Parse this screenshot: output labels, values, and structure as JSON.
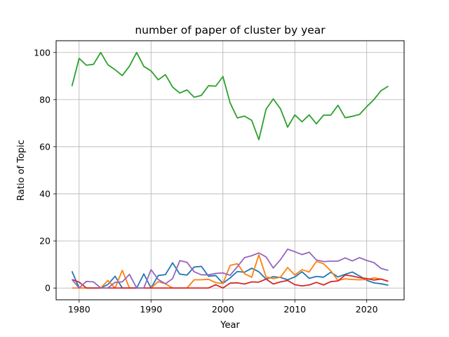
{
  "chart_data": {
    "type": "line",
    "title": "number of paper of cluster by year",
    "xlabel": "Year",
    "ylabel": "Ratio of Topic",
    "xlim": [
      1976.8,
      2025.2
    ],
    "ylim": [
      -5,
      105
    ],
    "xticks": [
      1980,
      1990,
      2000,
      2010,
      2020
    ],
    "yticks": [
      0,
      20,
      40,
      60,
      80,
      100
    ],
    "grid": true,
    "legend": "none",
    "x": [
      1979,
      1980,
      1981,
      1982,
      1983,
      1984,
      1985,
      1986,
      1987,
      1988,
      1989,
      1990,
      1991,
      1992,
      1993,
      1994,
      1995,
      1996,
      1997,
      1998,
      1999,
      2000,
      2001,
      2002,
      2003,
      2004,
      2005,
      2006,
      2007,
      2008,
      2009,
      2010,
      2011,
      2012,
      2013,
      2014,
      2015,
      2016,
      2017,
      2018,
      2019,
      2020,
      2021,
      2022,
      2023
    ],
    "series": [
      {
        "color": "#1f77b4",
        "values": [
          7.1,
          0,
          0,
          0,
          0,
          1.5,
          5,
          0,
          0,
          0,
          6,
          0,
          5.3,
          5.7,
          10.7,
          5.9,
          5.5,
          8.9,
          9.2,
          5,
          5.3,
          2,
          4.3,
          7,
          6.7,
          8.4,
          6.9,
          3.8,
          4.8,
          4.5,
          3.5,
          4.7,
          6.9,
          4.1,
          4.9,
          4.6,
          6.7,
          4.7,
          5.8,
          6.8,
          5.1,
          3.3,
          2.2,
          1.8,
          1.2
        ]
      },
      {
        "color": "#ff7f0e",
        "values": [
          0,
          0,
          0,
          0,
          0,
          3.2,
          0,
          7.5,
          0,
          0,
          0,
          0,
          2.7,
          1.8,
          0,
          0,
          0,
          3.5,
          3.5,
          3.7,
          2.3,
          1.9,
          9.6,
          10.3,
          6.1,
          4.6,
          14.1,
          4.7,
          4,
          4.6,
          8.7,
          5.5,
          7.8,
          6.8,
          11.3,
          10.3,
          7.3,
          3.2,
          3.9,
          3.6,
          3.5,
          3.6,
          4.3,
          3.8,
          2.9
        ]
      },
      {
        "color": "#2ca02c",
        "values": [
          85.7,
          97.5,
          94.6,
          95,
          100,
          94.8,
          92.7,
          90.2,
          94.2,
          100,
          94.1,
          92.2,
          88.4,
          90.6,
          85.3,
          82.8,
          84.1,
          81,
          81.8,
          85.9,
          85.7,
          89.8,
          78.6,
          72.2,
          73,
          71.2,
          63,
          75.9,
          80.3,
          76.1,
          68.3,
          73.5,
          70.6,
          73.5,
          69.7,
          73.4,
          73.4,
          77.6,
          72.3,
          72.9,
          73.7,
          77,
          80,
          83.8,
          85.7
        ]
      },
      {
        "color": "#d62728",
        "values": [
          3.6,
          2.5,
          0,
          0,
          0,
          0,
          0,
          0,
          0,
          0,
          0,
          0,
          0,
          0,
          0,
          0,
          0,
          0,
          0,
          0,
          1.4,
          0,
          2.1,
          2.2,
          1.7,
          2.6,
          2.5,
          3.8,
          1.7,
          2.6,
          3.2,
          1.4,
          0.9,
          1.3,
          2.4,
          1.3,
          2.7,
          3,
          5.5,
          5.1,
          4.4,
          4,
          3.4,
          3.8,
          2.8
        ]
      },
      {
        "color": "#9467bd",
        "values": [
          3.6,
          0,
          2.8,
          2.6,
          0,
          0,
          2.4,
          2.6,
          5.8,
          0,
          0,
          7.8,
          3.6,
          1.8,
          4,
          11.6,
          10.9,
          6.9,
          5.6,
          5.6,
          6.2,
          6.4,
          5.4,
          9,
          12.9,
          13.7,
          14.9,
          13.2,
          8.5,
          12,
          16.5,
          15.4,
          14.2,
          15.2,
          11.9,
          11.2,
          11.4,
          11.4,
          12.8,
          11.5,
          12.9,
          11.7,
          10.8,
          8.3,
          7.5
        ]
      }
    ]
  }
}
